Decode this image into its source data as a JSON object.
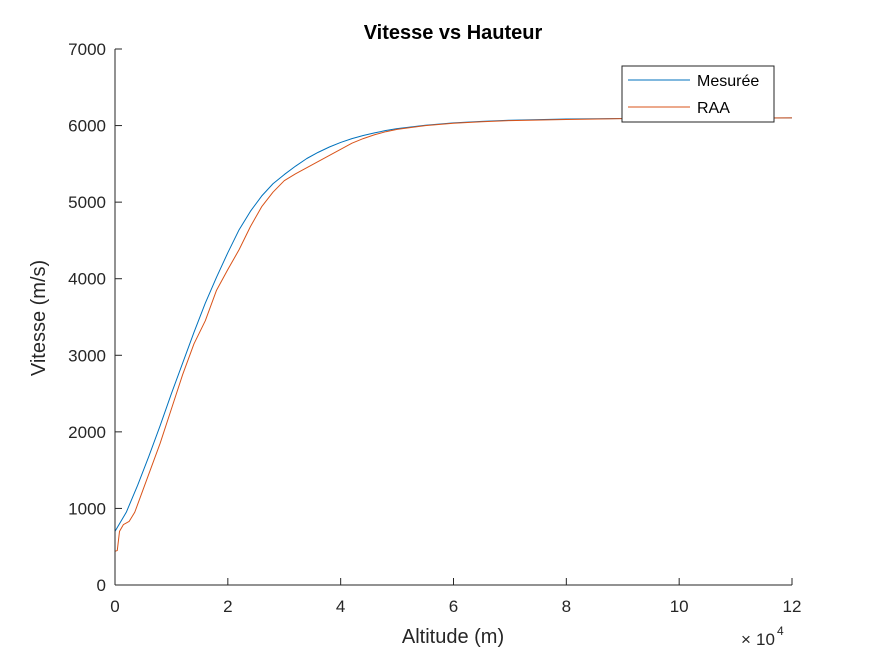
{
  "chart_data": {
    "type": "line",
    "title": "Vitesse vs Hauteur",
    "xlabel": "Altitude (m)",
    "ylabel": "Vitesse (m/s)",
    "x_multiplier": {
      "base": "10",
      "exponent": "4",
      "prefix": "×"
    },
    "xlim": [
      0,
      120000
    ],
    "ylim": [
      0,
      7000
    ],
    "xticks": [
      0,
      20000,
      40000,
      60000,
      80000,
      100000,
      120000
    ],
    "xtick_labels": [
      "0",
      "2",
      "4",
      "6",
      "8",
      "10",
      "12"
    ],
    "yticks": [
      0,
      1000,
      2000,
      3000,
      4000,
      5000,
      6000,
      7000
    ],
    "ytick_labels": [
      "0",
      "1000",
      "2000",
      "3000",
      "4000",
      "5000",
      "6000",
      "7000"
    ],
    "grid": false,
    "legend_position": "top-right",
    "series": [
      {
        "name": "Mesurée",
        "color": "#0072BD",
        "x": [
          0,
          2000,
          4000,
          6000,
          8000,
          10000,
          12000,
          14000,
          16000,
          18000,
          20000,
          22000,
          24000,
          26000,
          28000,
          30000,
          32000,
          34000,
          36000,
          38000,
          40000,
          42000,
          44000,
          46000,
          48000,
          50000,
          55000,
          60000,
          65000,
          70000,
          80000,
          90000,
          100000,
          110000,
          120000
        ],
        "y": [
          700,
          950,
          1300,
          1680,
          2080,
          2500,
          2900,
          3300,
          3680,
          4020,
          4340,
          4640,
          4880,
          5080,
          5240,
          5360,
          5470,
          5570,
          5650,
          5720,
          5780,
          5830,
          5870,
          5905,
          5935,
          5960,
          6005,
          6035,
          6055,
          6070,
          6085,
          6093,
          6097,
          6099,
          6100
        ]
      },
      {
        "name": "RAA",
        "color": "#D95319",
        "x": [
          0,
          400,
          800,
          1500,
          2500,
          3500,
          4500,
          6000,
          8000,
          10000,
          12000,
          14000,
          16000,
          18000,
          20000,
          22000,
          24000,
          26000,
          28000,
          30000,
          32000,
          34000,
          36000,
          38000,
          40000,
          42000,
          44000,
          46000,
          48000,
          50000,
          55000,
          60000,
          65000,
          70000,
          80000,
          90000,
          100000,
          110000,
          120000
        ],
        "y": [
          440,
          450,
          700,
          790,
          830,
          950,
          1150,
          1450,
          1850,
          2300,
          2750,
          3150,
          3450,
          3850,
          4120,
          4380,
          4680,
          4940,
          5130,
          5280,
          5370,
          5450,
          5530,
          5610,
          5690,
          5770,
          5830,
          5880,
          5920,
          5950,
          6000,
          6030,
          6050,
          6065,
          6080,
          6090,
          6095,
          6099,
          6100
        ]
      }
    ]
  }
}
